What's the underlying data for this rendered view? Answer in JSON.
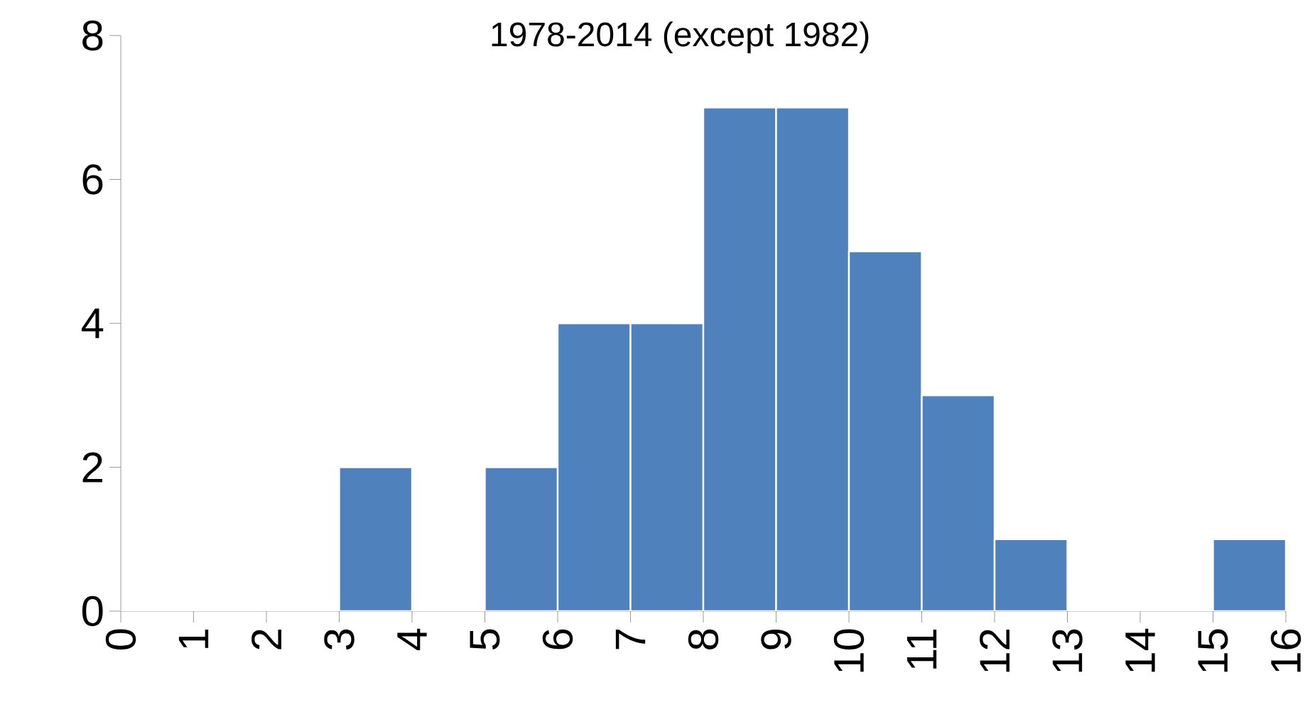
{
  "chart_data": {
    "type": "histogram",
    "title": "1978-2014 (except 1982)",
    "bins": [
      0,
      1,
      2,
      3,
      4,
      5,
      6,
      7,
      8,
      9,
      10,
      11,
      12,
      13,
      14,
      15,
      16
    ],
    "values": [
      0,
      0,
      0,
      2,
      0,
      2,
      4,
      4,
      7,
      7,
      5,
      3,
      1,
      0,
      0,
      1
    ],
    "color": "#4f81bd",
    "xlim": [
      0,
      16
    ],
    "xticks": [
      0,
      1,
      2,
      3,
      4,
      5,
      6,
      7,
      8,
      9,
      10,
      11,
      12,
      13,
      14,
      15,
      16
    ],
    "ylim": [
      0,
      8
    ],
    "yticks": [
      0,
      2,
      4,
      6,
      8
    ],
    "grid": false
  }
}
